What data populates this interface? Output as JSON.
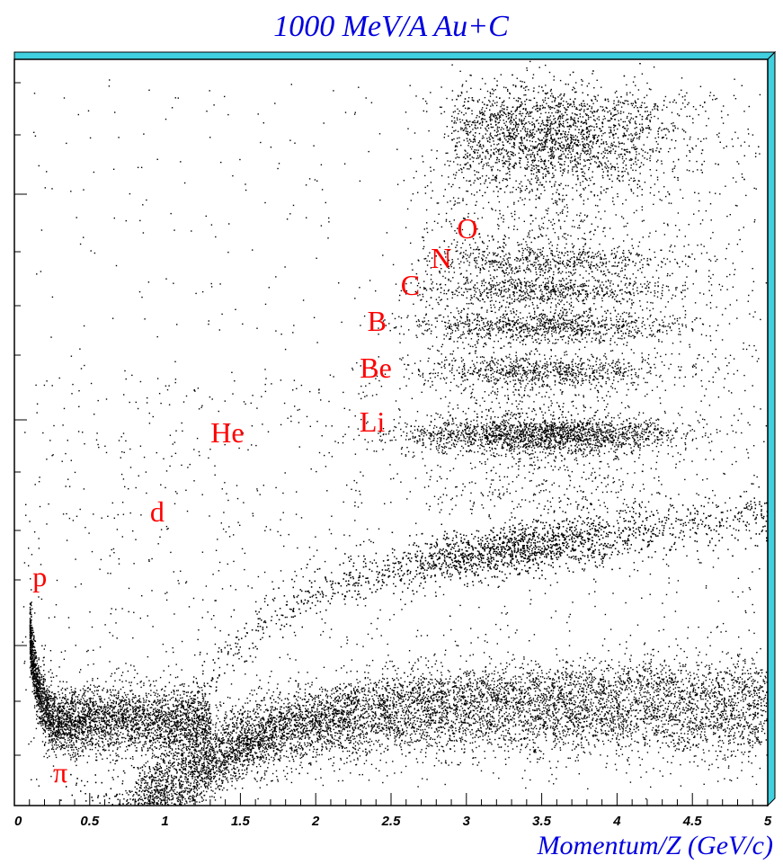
{
  "chart_data": {
    "type": "scatter",
    "title": "1000 MeV/A  Au+C",
    "xlabel": "Momentum/Z  (GeV/c)",
    "ylabel": "",
    "xlim": [
      0,
      5
    ],
    "x_ticks": [
      "0",
      "0.5",
      "1",
      "1.5",
      "2",
      "2.5",
      "3",
      "3.5",
      "4",
      "4.5",
      "5"
    ],
    "grid": false,
    "frame_color": "#40d0e0",
    "label_color": "#ff0000",
    "title_color": "#0000e0",
    "species_labels": [
      {
        "text": "π",
        "x": 0.4
      },
      {
        "text": "p",
        "x": 0.3
      },
      {
        "text": "d",
        "x": 0.9
      },
      {
        "text": "He",
        "x": 1.35
      },
      {
        "text": "Li",
        "x": 2.35
      },
      {
        "text": "Be",
        "x": 2.4
      },
      {
        "text": "B",
        "x": 2.45
      },
      {
        "text": "C",
        "x": 2.6
      },
      {
        "text": "N",
        "x": 2.8
      },
      {
        "text": "O",
        "x": 2.95
      }
    ],
    "bands": [
      {
        "species": "π",
        "x": [
          0.1,
          5.0
        ]
      },
      {
        "species": "p",
        "x": [
          0.1,
          5.0
        ]
      },
      {
        "species": "d",
        "x": [
          0.2,
          5.0
        ]
      },
      {
        "species": "He",
        "x": [
          0.3,
          5.0
        ]
      },
      {
        "species": "Li",
        "x": [
          2.0,
          5.0
        ]
      },
      {
        "species": "Be",
        "x": [
          2.2,
          5.0
        ]
      },
      {
        "species": "B",
        "x": [
          2.3,
          5.0
        ]
      },
      {
        "species": "C",
        "x": [
          2.5,
          5.0
        ]
      },
      {
        "species": "N",
        "x": [
          2.7,
          5.0
        ]
      },
      {
        "species": "O",
        "x": [
          2.9,
          5.0
        ]
      }
    ]
  }
}
